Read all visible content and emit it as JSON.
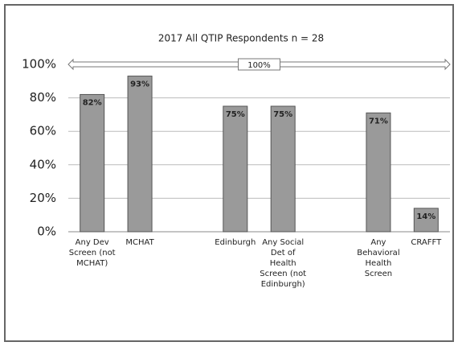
{
  "chart_data": {
    "type": "bar",
    "title": "2017 All QTIP Respondents n = 28",
    "categories": [
      "Any Dev Screen (not MCHAT)",
      "MCHAT",
      null,
      "Edinburgh",
      "Any Social Det of Health Screen (not Edinburgh)",
      null,
      "Any Behavioral Health Screen",
      "CRAFFT"
    ],
    "values": [
      82,
      93,
      null,
      75,
      75,
      null,
      71,
      14
    ],
    "value_labels": [
      "82%",
      "93%",
      null,
      "75%",
      "75%",
      null,
      "71%",
      "14%"
    ],
    "color": "#9a9a9a",
    "ylim": [
      0,
      100
    ],
    "yticks": [
      {
        "value": 0,
        "label": "0%"
      },
      {
        "value": 20,
        "label": "20%"
      },
      {
        "value": 40,
        "label": "40%"
      },
      {
        "value": 60,
        "label": "60%"
      },
      {
        "value": 80,
        "label": "80%"
      },
      {
        "value": 100,
        "label": "100%"
      }
    ],
    "grid": true,
    "annotations": [
      {
        "text": "100%",
        "y": 100
      }
    ]
  }
}
